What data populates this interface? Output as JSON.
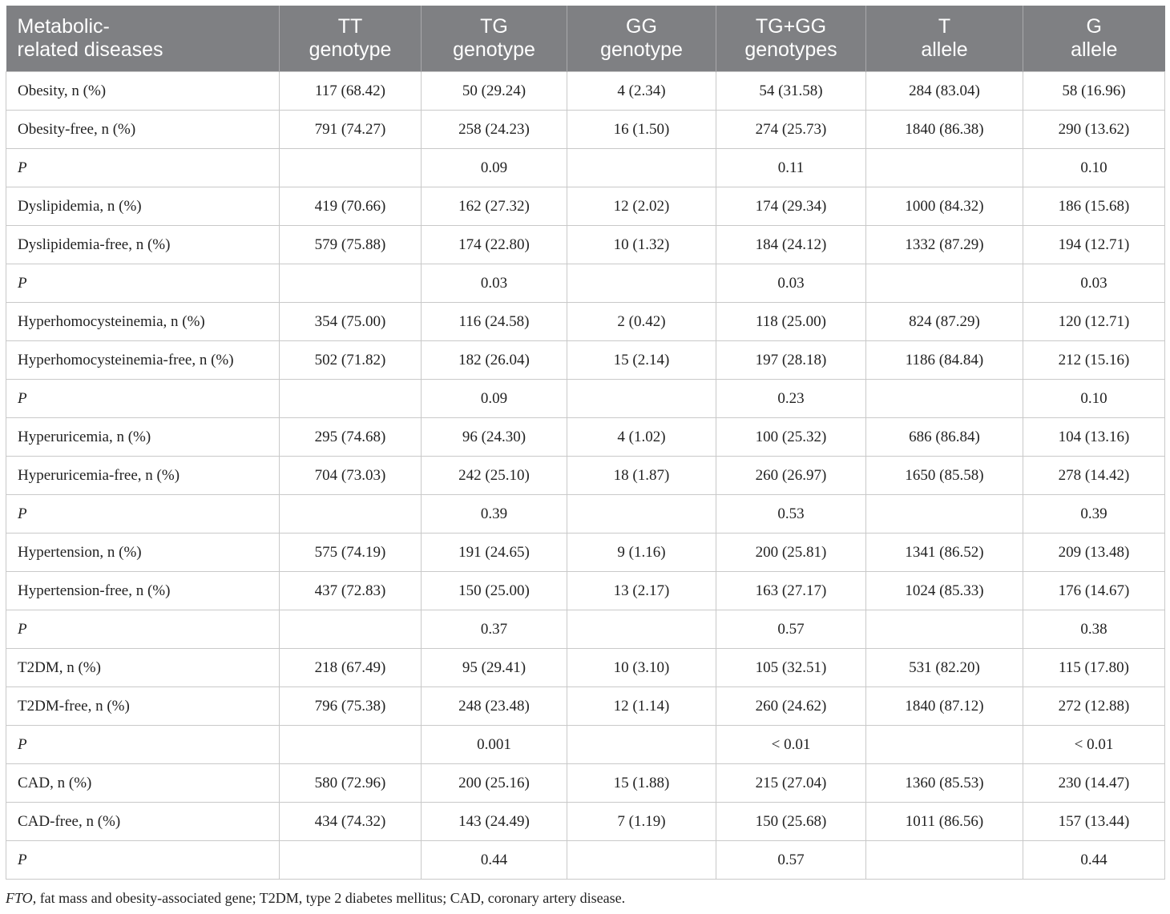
{
  "table": {
    "headers": [
      [
        "Metabolic-",
        "related diseases"
      ],
      [
        "TT",
        "genotype"
      ],
      [
        "TG",
        "genotype"
      ],
      [
        "GG",
        "genotype"
      ],
      [
        "TG+GG",
        "genotypes"
      ],
      [
        "T",
        "allele"
      ],
      [
        "G",
        "allele"
      ]
    ],
    "rows": [
      [
        "Obesity, n (%)",
        "117 (68.42)",
        "50 (29.24)",
        "4 (2.34)",
        "54 (31.58)",
        "284 (83.04)",
        "58 (16.96)"
      ],
      [
        "Obesity-free, n (%)",
        "791 (74.27)",
        "258 (24.23)",
        "16 (1.50)",
        "274 (25.73)",
        "1840 (86.38)",
        "290 (13.62)"
      ],
      [
        "P",
        "",
        "0.09",
        "",
        "0.11",
        "",
        "0.10"
      ],
      [
        "Dyslipidemia, n (%)",
        "419 (70.66)",
        "162 (27.32)",
        "12 (2.02)",
        "174 (29.34)",
        "1000 (84.32)",
        "186 (15.68)"
      ],
      [
        "Dyslipidemia-free, n (%)",
        "579 (75.88)",
        "174 (22.80)",
        "10 (1.32)",
        "184 (24.12)",
        "1332 (87.29)",
        "194 (12.71)"
      ],
      [
        "P",
        "",
        "0.03",
        "",
        "0.03",
        "",
        "0.03"
      ],
      [
        "Hyperhomocysteinemia, n (%)",
        "354 (75.00)",
        "116 (24.58)",
        "2 (0.42)",
        "118 (25.00)",
        "824 (87.29)",
        "120 (12.71)"
      ],
      [
        "Hyperhomocysteinemia-free, n (%)",
        "502 (71.82)",
        "182 (26.04)",
        "15 (2.14)",
        "197 (28.18)",
        "1186 (84.84)",
        "212 (15.16)"
      ],
      [
        "P",
        "",
        "0.09",
        "",
        "0.23",
        "",
        "0.10"
      ],
      [
        "Hyperuricemia, n (%)",
        "295 (74.68)",
        "96 (24.30)",
        "4 (1.02)",
        "100 (25.32)",
        "686 (86.84)",
        "104 (13.16)"
      ],
      [
        "Hyperuricemia-free, n (%)",
        "704 (73.03)",
        "242 (25.10)",
        "18 (1.87)",
        "260 (26.97)",
        "1650 (85.58)",
        "278 (14.42)"
      ],
      [
        "P",
        "",
        "0.39",
        "",
        "0.53",
        "",
        "0.39"
      ],
      [
        "Hypertension, n (%)",
        "575 (74.19)",
        "191 (24.65)",
        "9 (1.16)",
        "200 (25.81)",
        "1341 (86.52)",
        "209 (13.48)"
      ],
      [
        "Hypertension-free, n (%)",
        "437 (72.83)",
        "150 (25.00)",
        "13 (2.17)",
        "163 (27.17)",
        "1024 (85.33)",
        "176 (14.67)"
      ],
      [
        "P",
        "",
        "0.37",
        "",
        "0.57",
        "",
        "0.38"
      ],
      [
        "T2DM, n (%)",
        "218 (67.49)",
        "95 (29.41)",
        "10 (3.10)",
        "105 (32.51)",
        "531 (82.20)",
        "115 (17.80)"
      ],
      [
        "T2DM-free, n (%)",
        "796 (75.38)",
        "248 (23.48)",
        "12 (1.14)",
        "260 (24.62)",
        "1840 (87.12)",
        "272 (12.88)"
      ],
      [
        "P",
        "",
        "0.001",
        "",
        "< 0.01",
        "",
        "< 0.01"
      ],
      [
        "CAD, n (%)",
        "580 (72.96)",
        "200 (25.16)",
        "15 (1.88)",
        "215 (27.04)",
        "1360 (85.53)",
        "230 (14.47)"
      ],
      [
        "CAD-free, n (%)",
        "434 (74.32)",
        "143 (24.49)",
        "7 (1.19)",
        "150 (25.68)",
        "1011 (86.56)",
        "157 (13.44)"
      ],
      [
        "P",
        "",
        "0.44",
        "",
        "0.57",
        "",
        "0.44"
      ]
    ]
  },
  "footnote": {
    "abbrev": "FTO",
    "text": ", fat mass and obesity-associated gene; T2DM, type 2 diabetes mellitus; CAD, coronary artery disease."
  },
  "colors": {
    "header_bg": "#7f8083",
    "header_text": "#ffffff",
    "grid": "#c9c9c9"
  }
}
